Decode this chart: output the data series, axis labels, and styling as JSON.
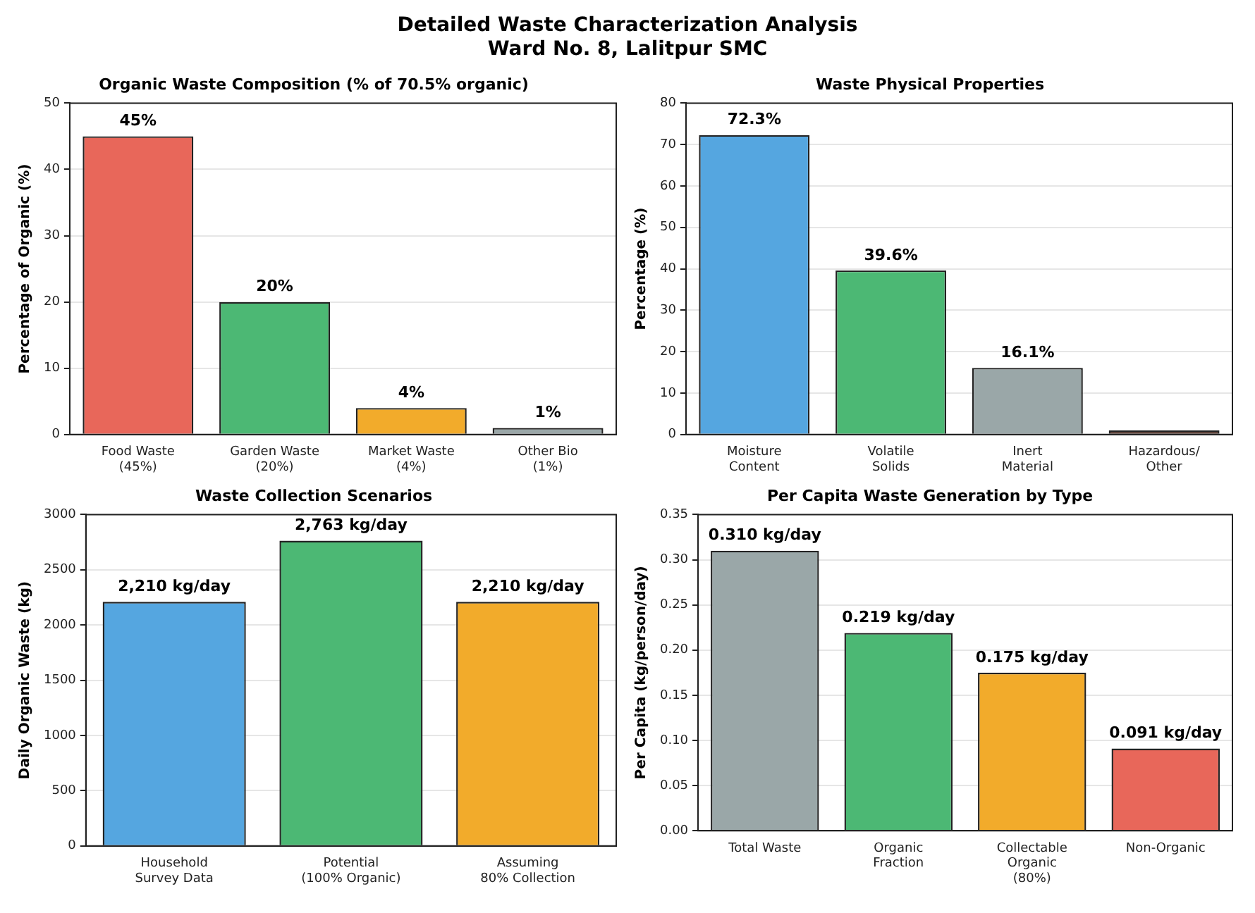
{
  "chart_data": [
    {
      "type": "other",
      "title": "Detailed Waste Characterization Analysis",
      "subtitle": "Ward No. 8, Lalitpur SMC"
    },
    {
      "type": "bar",
      "title": "Organic Waste Composition (% of 70.5% organic)",
      "ylabel": "Percentage of Organic (%)",
      "categories": [
        "Food Waste\n(45%)",
        "Garden Waste\n(20%)",
        "Market Waste\n(4%)",
        "Other Bio\n(1%)"
      ],
      "values": [
        45,
        20,
        4,
        1
      ],
      "colors": [
        "#e8675a",
        "#4cb874",
        "#f2ab2b",
        "#9aa7a8"
      ],
      "value_labels": [
        "45%",
        "20%",
        "4%",
        "1%"
      ],
      "ylim": [
        0,
        50
      ],
      "yticks": [
        0,
        10,
        20,
        30,
        40,
        50
      ],
      "grid": "y"
    },
    {
      "type": "bar",
      "title": "Waste Physical Properties",
      "ylabel": "Percentage (%)",
      "categories": [
        "Moisture\nContent",
        "Volatile\nSolids",
        "Inert\nMaterial",
        "Hazardous/\nOther"
      ],
      "values": [
        72.3,
        39.6,
        16.1,
        1
      ],
      "colors": [
        "#55a6e0",
        "#4cb874",
        "#9aa7a8",
        "#4a2a20"
      ],
      "value_labels": [
        "72.3%",
        "39.6%",
        "16.1%",
        null
      ],
      "ylim": [
        0,
        80
      ],
      "yticks": [
        0,
        10,
        20,
        30,
        40,
        50,
        60,
        70,
        80
      ],
      "grid": "y"
    },
    {
      "type": "bar",
      "title": "Waste Collection Scenarios",
      "ylabel": "Daily Organic Waste (kg)",
      "categories": [
        "Household\nSurvey Data",
        "Potential\n(100% Organic)",
        "Assuming\n80% Collection"
      ],
      "values": [
        2210,
        2763,
        2210
      ],
      "colors": [
        "#55a6e0",
        "#4cb874",
        "#f2ab2b"
      ],
      "value_labels": [
        "2,210 kg/day",
        "2,763 kg/day",
        "2,210 kg/day"
      ],
      "ylim": [
        0,
        3000
      ],
      "yticks": [
        0,
        500,
        1000,
        1500,
        2000,
        2500,
        3000
      ],
      "grid": "y"
    },
    {
      "type": "bar",
      "title": "Per Capita Waste Generation by Type",
      "ylabel": "Per Capita (kg/person/day)",
      "categories": [
        "Total Waste",
        "Organic\nFraction",
        "Collectable\nOrganic\n(80%)",
        "Non-Organic"
      ],
      "values": [
        0.31,
        0.219,
        0.175,
        0.091
      ],
      "colors": [
        "#9aa7a8",
        "#4cb874",
        "#f2ab2b",
        "#e8675a"
      ],
      "value_labels": [
        "0.310 kg/day",
        "0.219 kg/day",
        "0.175 kg/day",
        "0.091 kg/day"
      ],
      "ylim": [
        0,
        0.35
      ],
      "yticks": [
        {
          "value": 0,
          "label": "0.00"
        },
        {
          "value": 0.05,
          "label": "0.05"
        },
        {
          "value": 0.1,
          "label": "0.10"
        },
        {
          "value": 0.15,
          "label": "0.15"
        },
        {
          "value": 0.2,
          "label": "0.20"
        },
        {
          "value": 0.25,
          "label": "0.25"
        },
        {
          "value": 0.3,
          "label": "0.30"
        },
        {
          "value": 0.35,
          "label": "0.35"
        }
      ],
      "grid": "y"
    }
  ]
}
